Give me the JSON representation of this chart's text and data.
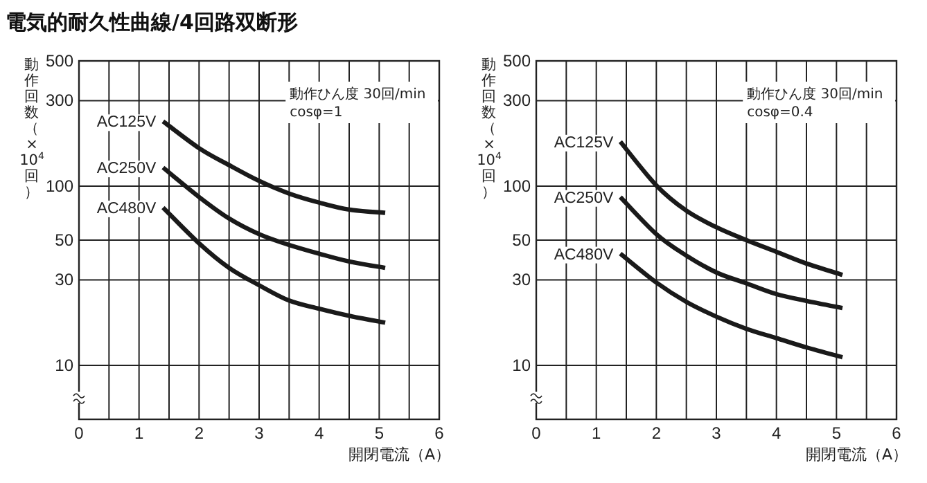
{
  "chart_data": [
    {
      "type": "line",
      "title": "電気的耐久性曲線/4回路双断形",
      "xlabel": "開閉電流（A）",
      "ylabel": "動作回数（×10$^{4}$回）",
      "annotations": [
        "動作ひん度 30回/min",
        "cosφ=1"
      ],
      "log": "y",
      "grid": true,
      "xlim": [
        0,
        6
      ],
      "ylim": [
        5,
        500
      ],
      "xticks": [
        0,
        {
          "value": 0.5,
          "label": null
        },
        1,
        {
          "value": 1.5,
          "label": null
        },
        2,
        {
          "value": 2.5,
          "label": null
        },
        3,
        {
          "value": 3.5,
          "label": null
        },
        4,
        {
          "value": 4.5,
          "label": null
        },
        5,
        {
          "value": 5.5,
          "label": null
        },
        6
      ],
      "yticks": [
        10,
        30,
        50,
        100,
        300,
        500
      ],
      "x": [
        1.4,
        2,
        2.5,
        3,
        3.5,
        4,
        4.5,
        5.1
      ],
      "series": [
        {
          "name": "AC125V",
          "color": "#1a1a1a",
          "values": [
            230,
            163,
            131,
            107,
            91,
            81,
            74,
            71
          ]
        },
        {
          "name": "AC250V",
          "color": "#1a1a1a",
          "values": [
            127,
            87,
            66,
            54,
            47,
            42,
            38,
            35
          ]
        },
        {
          "name": "AC480V",
          "color": "#1a1a1a",
          "values": [
            76,
            48,
            35,
            28,
            23,
            20.7,
            18.9,
            17.3
          ]
        }
      ]
    },
    {
      "type": "line",
      "xlabel": "開閉電流（A）",
      "ylabel": "動作回数（×10$^{4}$回）",
      "annotations": [
        "動作ひん度 30回/min",
        "cosφ=0.4"
      ],
      "log": "y",
      "grid": true,
      "xlim": [
        0,
        6
      ],
      "ylim": [
        5,
        500
      ],
      "xticks": [
        0,
        {
          "value": 0.5,
          "label": null
        },
        1,
        {
          "value": 1.5,
          "label": null
        },
        2,
        {
          "value": 2.5,
          "label": null
        },
        3,
        {
          "value": 3.5,
          "label": null
        },
        4,
        {
          "value": 4.5,
          "label": null
        },
        5,
        {
          "value": 5.5,
          "label": null
        },
        6
      ],
      "yticks": [
        10,
        30,
        50,
        100,
        300,
        500
      ],
      "x": [
        1.4,
        2,
        2.5,
        3,
        3.5,
        4,
        4.5,
        5.1
      ],
      "series": [
        {
          "name": "AC125V",
          "color": "#1a1a1a",
          "values": [
            177,
            101,
            73,
            59,
            50,
            43,
            37,
            32
          ]
        },
        {
          "name": "AC250V",
          "color": "#1a1a1a",
          "values": [
            87,
            54,
            41,
            33,
            28.7,
            25,
            22.9,
            20.9
          ]
        },
        {
          "name": "AC480V",
          "color": "#1a1a1a",
          "values": [
            42,
            29,
            22.6,
            18.7,
            16,
            14.2,
            12.6,
            11.1
          ]
        }
      ]
    }
  ]
}
